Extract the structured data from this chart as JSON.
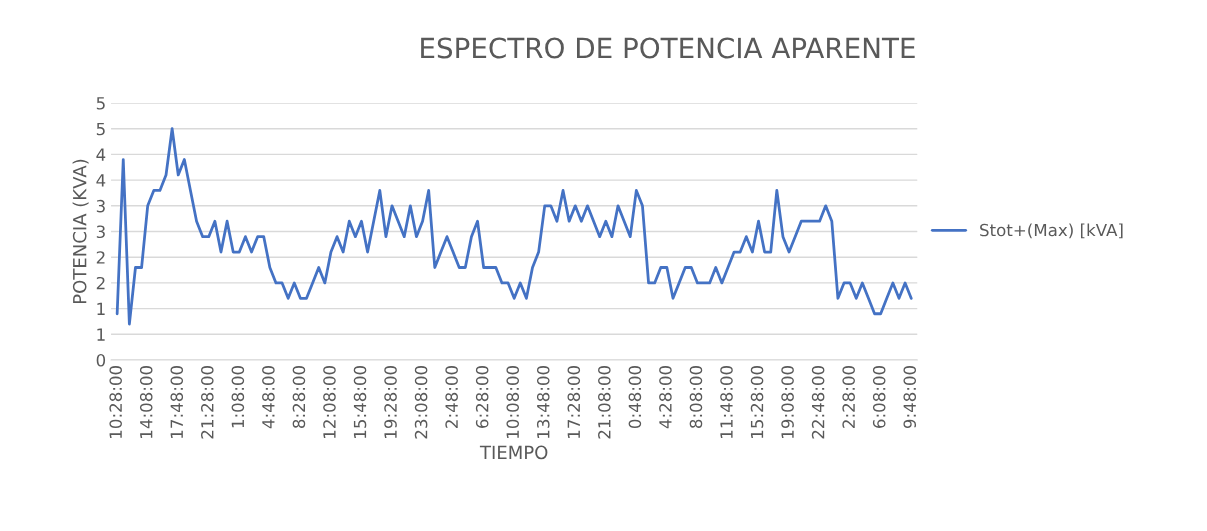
{
  "chart_data": {
    "type": "line",
    "title": "ESPECTRO DE POTENCIA APARENTE",
    "xlabel": "TIEMPO",
    "ylabel": "POTENCIA (KVA)",
    "categories": [
      "10:28:00",
      null,
      null,
      null,
      null,
      "14:08:00",
      null,
      null,
      null,
      null,
      "17:48:00",
      null,
      null,
      null,
      null,
      "21:28:00",
      null,
      null,
      null,
      null,
      "1:08:00",
      null,
      null,
      null,
      null,
      "4:48:00",
      null,
      null,
      null,
      null,
      "8:28:00",
      null,
      null,
      null,
      null,
      "12:08:00",
      null,
      null,
      null,
      null,
      "15:48:00",
      null,
      null,
      null,
      null,
      "19:28:00",
      null,
      null,
      null,
      null,
      "23:08:00",
      null,
      null,
      null,
      null,
      "2:48:00",
      null,
      null,
      null,
      null,
      "6:28:00",
      null,
      null,
      null,
      null,
      "10:08:00",
      null,
      null,
      null,
      null,
      "13:48:00",
      null,
      null,
      null,
      null,
      "17:28:00",
      null,
      null,
      null,
      null,
      "21:08:00",
      null,
      null,
      null,
      null,
      "0:48:00",
      null,
      null,
      null,
      null,
      "4:28:00",
      null,
      null,
      null,
      null,
      "8:08:00",
      null,
      null,
      null,
      null,
      "11:48:00",
      null,
      null,
      null,
      null,
      "15:28:00",
      null,
      null,
      null,
      null,
      "19:08:00",
      null,
      null,
      null,
      null,
      "22:48:00",
      null,
      null,
      null,
      null,
      "2:28:00",
      null,
      null,
      null,
      null,
      "6:08:00",
      null,
      null,
      null,
      null,
      "9:48:00"
    ],
    "series": [
      {
        "name": "Stot+(Max) [kVA]",
        "color": "#4472c4",
        "values": [
          0.9,
          3.9,
          0.7,
          1.8,
          1.8,
          3.0,
          3.3,
          3.3,
          3.6,
          4.5,
          3.6,
          3.9,
          3.3,
          2.7,
          2.4,
          2.4,
          2.7,
          2.1,
          2.7,
          2.1,
          2.1,
          2.4,
          2.1,
          2.4,
          2.4,
          1.8,
          1.5,
          1.5,
          1.2,
          1.5,
          1.2,
          1.2,
          1.5,
          1.8,
          1.5,
          2.1,
          2.4,
          2.1,
          2.7,
          2.4,
          2.7,
          2.1,
          2.7,
          3.3,
          2.4,
          3.0,
          2.7,
          2.4,
          3.0,
          2.4,
          2.7,
          3.3,
          1.8,
          2.1,
          2.4,
          2.1,
          1.8,
          1.8,
          2.4,
          2.7,
          1.8,
          1.8,
          1.8,
          1.5,
          1.5,
          1.2,
          1.5,
          1.2,
          1.8,
          2.1,
          3.0,
          3.0,
          2.7,
          3.3,
          2.7,
          3.0,
          2.7,
          3.0,
          2.7,
          2.4,
          2.7,
          2.4,
          3.0,
          2.7,
          2.4,
          3.3,
          3.0,
          1.5,
          1.5,
          1.8,
          1.8,
          1.2,
          1.5,
          1.8,
          1.8,
          1.5,
          1.5,
          1.5,
          1.8,
          1.5,
          1.8,
          2.1,
          2.1,
          2.4,
          2.1,
          2.7,
          2.1,
          2.1,
          3.3,
          2.4,
          2.1,
          2.4,
          2.7,
          2.7,
          2.7,
          2.7,
          3.0,
          2.7,
          1.2,
          1.5,
          1.5,
          1.2,
          1.5,
          1.2,
          0.9,
          0.9,
          1.2,
          1.5,
          1.2,
          1.5,
          1.2
        ]
      }
    ],
    "ylim": [
      0,
      5
    ],
    "yticks": [
      0,
      {
        "value": 0.5,
        "label": "1"
      },
      1,
      {
        "value": 1.5,
        "label": "2"
      },
      2,
      {
        "value": 2.5,
        "label": "3"
      },
      3,
      {
        "value": 3.5,
        "label": "4"
      },
      4,
      {
        "value": 4.5,
        "label": "5"
      },
      5
    ],
    "grid": "y",
    "legend": "right",
    "marker": "none",
    "line_style": "solid"
  }
}
